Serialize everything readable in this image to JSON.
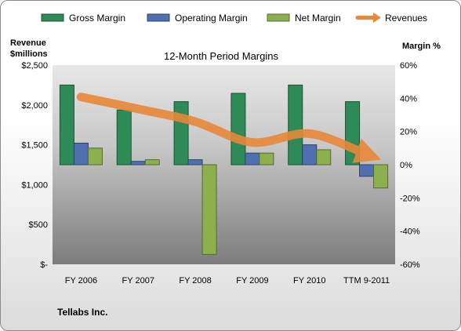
{
  "chart_data": {
    "type": "bar",
    "title": "12-Month Period Margins",
    "categories": [
      "FY 2006",
      "FY 2007",
      "FY 2008",
      "FY 2009",
      "FY 2010",
      "TTM 9-2011"
    ],
    "series": [
      {
        "name": "Gross Margin",
        "axis": "right",
        "color": "#2e8b57",
        "values": [
          48,
          33,
          38,
          43,
          48,
          38
        ]
      },
      {
        "name": "Operating Margin",
        "axis": "right",
        "color": "#4f6fb0",
        "values": [
          13,
          2,
          3,
          7,
          12,
          -7
        ]
      },
      {
        "name": "Net Margin",
        "axis": "right",
        "color": "#8db04f",
        "values": [
          10,
          3,
          -54,
          7,
          9,
          -14
        ]
      },
      {
        "name": "Revenues",
        "axis": "left",
        "color": "#e8883a",
        "values": [
          2100,
          1950,
          1790,
          1530,
          1640,
          1380
        ]
      }
    ],
    "y_left": {
      "label_lines": [
        "Revenue",
        "$millions"
      ],
      "range": [
        0,
        2500
      ],
      "ticks": [
        "$-",
        "$500",
        "$1,000",
        "$1,500",
        "$2,000",
        "$2,500"
      ]
    },
    "y_right": {
      "label": "Margin %",
      "range": [
        -60,
        60
      ],
      "ticks": [
        "-60%",
        "-40%",
        "-20%",
        "0%",
        "20%",
        "40%",
        "60%"
      ]
    },
    "legend_position": "top",
    "grid": false
  },
  "footer": {
    "company": "Tellabs Inc."
  }
}
